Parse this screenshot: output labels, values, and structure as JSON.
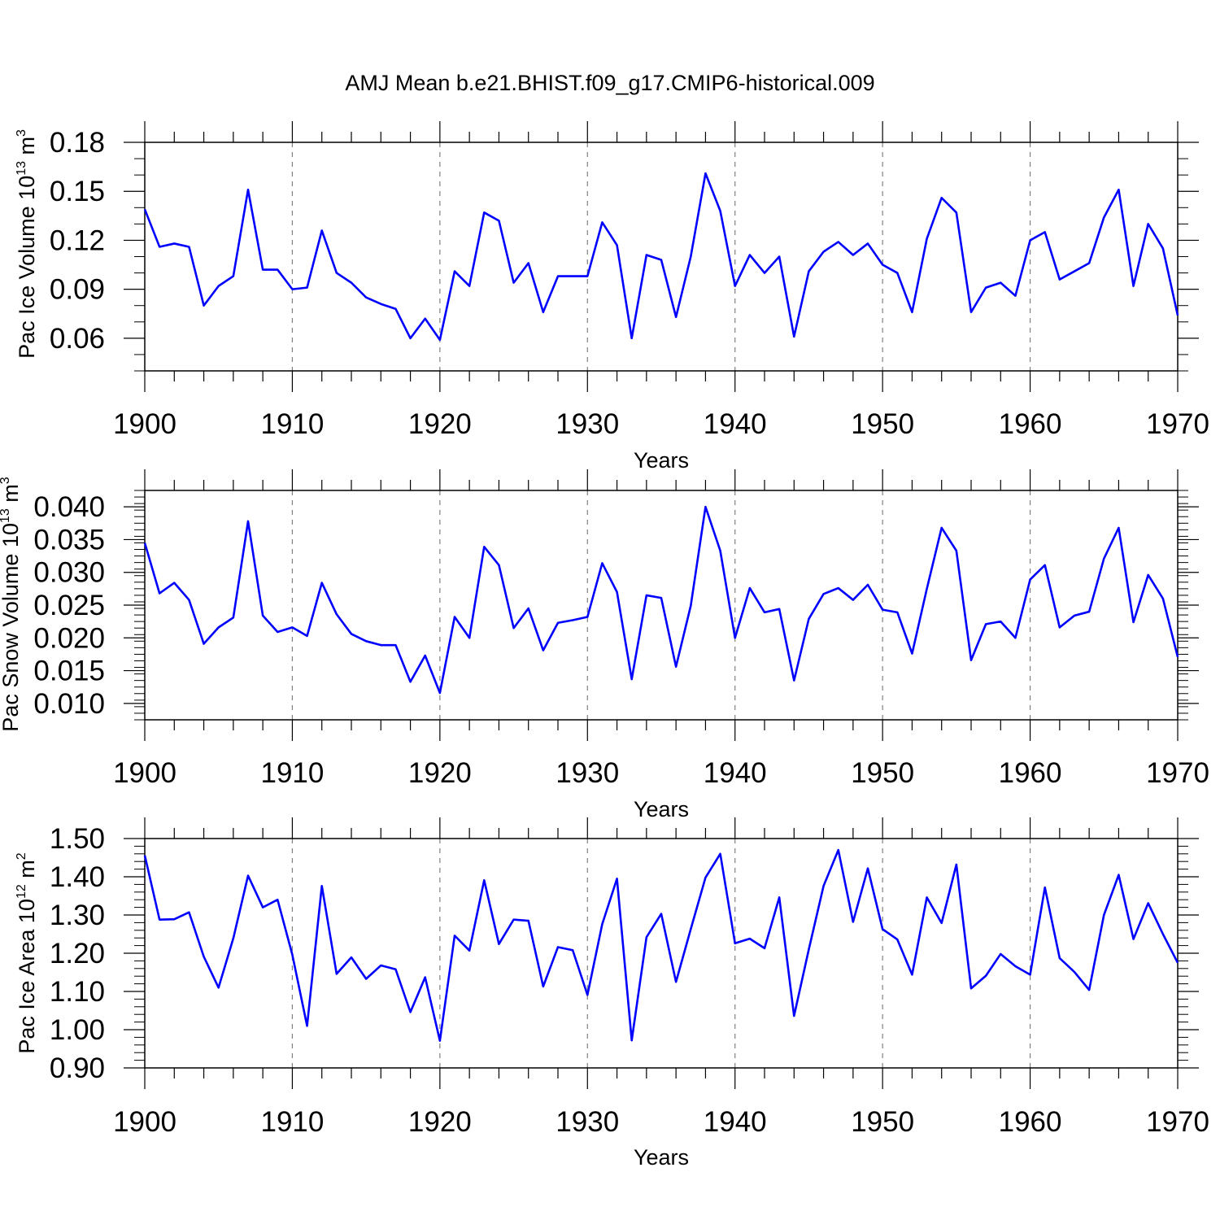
{
  "figure_title": "AMJ Mean b.e21.BHIST.f09_g17.CMIP6-historical.009",
  "colors": {
    "line": "#0000ff",
    "axis": "#000000",
    "grid": "#808080"
  },
  "chart_data": [
    {
      "type": "line",
      "title": "AMJ Mean b.e21.BHIST.f09_g17.CMIP6-historical.009",
      "xlabel": "Years",
      "ylabel": {
        "main": "Pac Ice Volume 10",
        "exp": "13",
        "unit": " m",
        "unit_exp": "3"
      },
      "xlim": [
        1900,
        1970
      ],
      "ylim": [
        0.04,
        0.18
      ],
      "xticks": [
        1900,
        1910,
        1920,
        1930,
        1940,
        1950,
        1960,
        1970
      ],
      "xtick_labels": [
        "1900",
        "1910",
        "1920",
        "1930",
        "1940",
        "1950",
        "1960",
        "1970"
      ],
      "yticks": [
        0.06,
        0.09,
        0.12,
        0.15,
        0.18
      ],
      "ytick_labels": [
        "0.06",
        "0.09",
        "0.12",
        "0.15",
        "0.18"
      ],
      "yminor_step": 0.01,
      "grid": "vertical dashed at decades",
      "series": [
        {
          "name": "Pac Ice Volume",
          "x_start": 1900,
          "values": [
            0.139,
            0.116,
            0.118,
            0.116,
            0.08,
            0.092,
            0.098,
            0.151,
            0.102,
            0.102,
            0.09,
            0.091,
            0.126,
            0.1,
            0.094,
            0.085,
            0.081,
            0.078,
            0.06,
            0.072,
            0.059,
            0.101,
            0.092,
            0.137,
            0.132,
            0.094,
            0.106,
            0.076,
            0.098,
            0.098,
            0.098,
            0.131,
            0.117,
            0.06,
            0.111,
            0.108,
            0.073,
            0.11,
            0.161,
            0.138,
            0.092,
            0.111,
            0.1,
            0.11,
            0.061,
            0.101,
            0.113,
            0.119,
            0.111,
            0.118,
            0.105,
            0.1,
            0.076,
            0.121,
            0.146,
            0.137,
            0.076,
            0.091,
            0.094,
            0.086,
            0.12,
            0.125,
            0.096,
            0.101,
            0.106,
            0.134,
            0.151,
            0.092,
            0.13,
            0.115,
            0.074
          ]
        }
      ]
    },
    {
      "type": "line",
      "xlabel": "Years",
      "ylabel": {
        "main": "Pac Snow Volume 10",
        "exp": "13",
        "unit": " m",
        "unit_exp": "3"
      },
      "xlim": [
        1900,
        1970
      ],
      "ylim": [
        0.0075,
        0.0425
      ],
      "xticks": [
        1900,
        1910,
        1920,
        1930,
        1940,
        1950,
        1960,
        1970
      ],
      "xtick_labels": [
        "1900",
        "1910",
        "1920",
        "1930",
        "1940",
        "1950",
        "1960",
        "1970"
      ],
      "yticks": [
        0.01,
        0.015,
        0.02,
        0.025,
        0.03,
        0.035,
        0.04
      ],
      "ytick_labels": [
        "0.010",
        "0.015",
        "0.020",
        "0.025",
        "0.030",
        "0.035",
        "0.040"
      ],
      "yminor_step": 0.001,
      "grid": "vertical dashed at decades",
      "series": [
        {
          "name": "Pac Snow Volume",
          "x_start": 1900,
          "values": [
            0.0345,
            0.0268,
            0.0284,
            0.0258,
            0.0191,
            0.0216,
            0.0231,
            0.0378,
            0.0234,
            0.0209,
            0.0216,
            0.0203,
            0.0284,
            0.0236,
            0.0206,
            0.0195,
            0.0189,
            0.0189,
            0.0133,
            0.0173,
            0.0116,
            0.0232,
            0.02,
            0.0339,
            0.0311,
            0.0215,
            0.0245,
            0.0181,
            0.0223,
            0.0227,
            0.0232,
            0.0314,
            0.027,
            0.0137,
            0.0265,
            0.0261,
            0.0156,
            0.0249,
            0.04,
            0.0333,
            0.02,
            0.0276,
            0.0239,
            0.0244,
            0.0135,
            0.0229,
            0.0267,
            0.0276,
            0.0258,
            0.0281,
            0.0243,
            0.0239,
            0.0176,
            0.0275,
            0.0368,
            0.0333,
            0.0166,
            0.0221,
            0.0225,
            0.02,
            0.0289,
            0.0311,
            0.0216,
            0.0234,
            0.024,
            0.0321,
            0.0368,
            0.0224,
            0.0296,
            0.026,
            0.0171
          ]
        }
      ]
    },
    {
      "type": "line",
      "xlabel": "Years",
      "ylabel": {
        "main": "Pac Ice Area 10",
        "exp": "12",
        "unit": " m",
        "unit_exp": "2"
      },
      "xlim": [
        1900,
        1970
      ],
      "ylim": [
        0.9,
        1.5
      ],
      "xticks": [
        1900,
        1910,
        1920,
        1930,
        1940,
        1950,
        1960,
        1970
      ],
      "xtick_labels": [
        "1900",
        "1910",
        "1920",
        "1930",
        "1940",
        "1950",
        "1960",
        "1970"
      ],
      "yticks": [
        0.9,
        1.0,
        1.1,
        1.2,
        1.3,
        1.4,
        1.5
      ],
      "ytick_labels": [
        "0.90",
        "1.00",
        "1.10",
        "1.20",
        "1.30",
        "1.40",
        "1.50"
      ],
      "yminor_step": 0.02,
      "grid": "vertical dashed at decades",
      "series": [
        {
          "name": "Pac Ice Area",
          "x_start": 1900,
          "values": [
            1.456,
            1.288,
            1.289,
            1.307,
            1.191,
            1.11,
            1.239,
            1.403,
            1.32,
            1.34,
            1.196,
            1.01,
            1.376,
            1.146,
            1.189,
            1.133,
            1.168,
            1.158,
            1.046,
            1.137,
            0.971,
            1.246,
            1.207,
            1.391,
            1.224,
            1.288,
            1.285,
            1.113,
            1.216,
            1.208,
            1.091,
            1.276,
            1.395,
            0.972,
            1.242,
            1.303,
            1.125,
            1.263,
            1.398,
            1.46,
            1.226,
            1.238,
            1.213,
            1.346,
            1.036,
            1.21,
            1.376,
            1.47,
            1.282,
            1.422,
            1.263,
            1.236,
            1.144,
            1.346,
            1.279,
            1.432,
            1.108,
            1.141,
            1.198,
            1.166,
            1.144,
            1.372,
            1.187,
            1.151,
            1.104,
            1.3,
            1.405,
            1.237,
            1.331,
            1.25,
            1.175
          ]
        }
      ]
    }
  ]
}
